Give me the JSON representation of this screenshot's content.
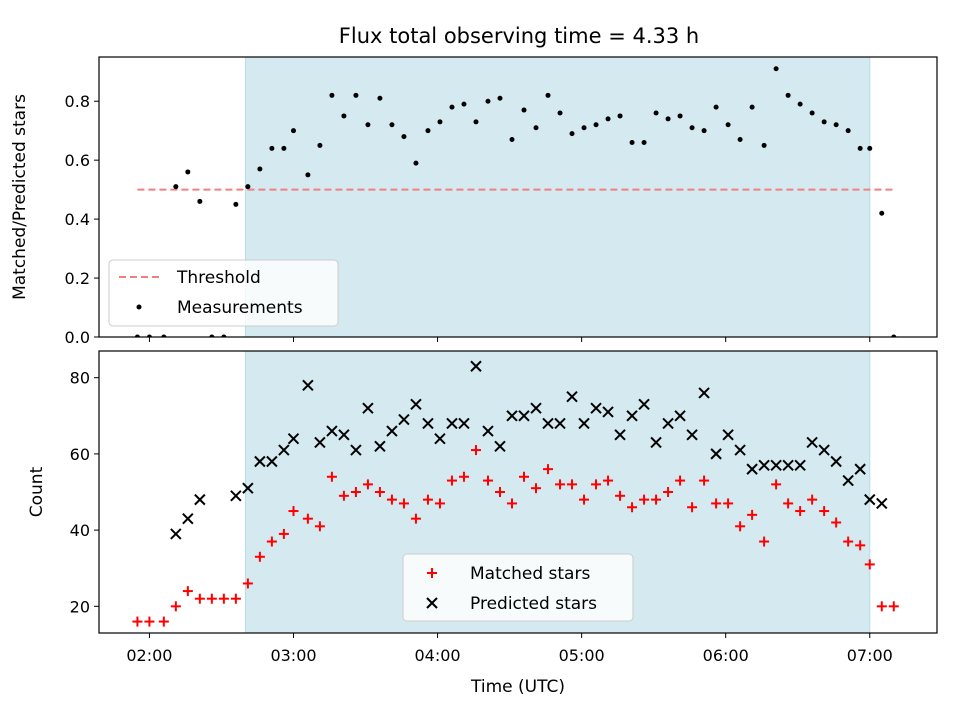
{
  "title": "Flux total observing time = 4.33 h",
  "colors": {
    "shade": "#d4eaf0",
    "shade_edge": "#b8dbe6",
    "threshold": "#f08080",
    "measurement": "#000000",
    "matched": "#ff0000",
    "predicted": "#000000"
  },
  "chart_data": [
    {
      "type": "scatter",
      "panel": "top",
      "ylabel": "Matched/Predicted stars",
      "xlabel": "",
      "xlim": [
        "01:39",
        "07:28"
      ],
      "ylim": [
        0,
        0.95
      ],
      "y_ticks": [
        "0.0",
        "0.2",
        "0.4",
        "0.6",
        "0.8"
      ],
      "shaded_region": [
        "02:40",
        "07:00"
      ],
      "legend": {
        "placement": "lower-left",
        "entries": [
          "Threshold",
          "Measurements"
        ]
      },
      "threshold": {
        "name": "Threshold",
        "style": "dashed",
        "x": [
          "01:55",
          "07:10"
        ],
        "y": 0.5
      },
      "series": [
        {
          "name": "Measurements",
          "points": [
            [
              "01:55",
              0.0
            ],
            [
              "02:00",
              0.0
            ],
            [
              "02:06",
              0.0
            ],
            [
              "02:11",
              0.51
            ],
            [
              "02:16",
              0.56
            ],
            [
              "02:21",
              0.46
            ],
            [
              "02:26",
              0.0
            ],
            [
              "02:31",
              0.0
            ],
            [
              "02:36",
              0.45
            ],
            [
              "02:41",
              0.51
            ],
            [
              "02:46",
              0.57
            ],
            [
              "02:51",
              0.64
            ],
            [
              "02:56",
              0.64
            ],
            [
              "03:00",
              0.7
            ],
            [
              "03:06",
              0.55
            ],
            [
              "03:11",
              0.65
            ],
            [
              "03:16",
              0.82
            ],
            [
              "03:21",
              0.75
            ],
            [
              "03:26",
              0.82
            ],
            [
              "03:31",
              0.72
            ],
            [
              "03:36",
              0.81
            ],
            [
              "03:41",
              0.72
            ],
            [
              "03:46",
              0.68
            ],
            [
              "03:51",
              0.59
            ],
            [
              "03:56",
              0.7
            ],
            [
              "04:01",
              0.73
            ],
            [
              "04:06",
              0.78
            ],
            [
              "04:11",
              0.79
            ],
            [
              "04:16",
              0.73
            ],
            [
              "04:21",
              0.8
            ],
            [
              "04:26",
              0.81
            ],
            [
              "04:31",
              0.67
            ],
            [
              "04:36",
              0.77
            ],
            [
              "04:41",
              0.71
            ],
            [
              "04:46",
              0.82
            ],
            [
              "04:51",
              0.76
            ],
            [
              "04:56",
              0.69
            ],
            [
              "05:01",
              0.71
            ],
            [
              "05:06",
              0.72
            ],
            [
              "05:11",
              0.74
            ],
            [
              "05:16",
              0.75
            ],
            [
              "05:21",
              0.66
            ],
            [
              "05:26",
              0.66
            ],
            [
              "05:31",
              0.76
            ],
            [
              "05:36",
              0.74
            ],
            [
              "05:41",
              0.75
            ],
            [
              "05:46",
              0.71
            ],
            [
              "05:51",
              0.7
            ],
            [
              "05:56",
              0.78
            ],
            [
              "06:01",
              0.72
            ],
            [
              "06:06",
              0.67
            ],
            [
              "06:11",
              0.78
            ],
            [
              "06:16",
              0.65
            ],
            [
              "06:21",
              0.91
            ],
            [
              "06:26",
              0.82
            ],
            [
              "06:31",
              0.79
            ],
            [
              "06:36",
              0.76
            ],
            [
              "06:41",
              0.73
            ],
            [
              "06:46",
              0.72
            ],
            [
              "06:51",
              0.7
            ],
            [
              "06:56",
              0.64
            ],
            [
              "07:00",
              0.64
            ],
            [
              "07:05",
              0.42
            ],
            [
              "07:10",
              0.0
            ]
          ]
        }
      ]
    },
    {
      "type": "scatter",
      "panel": "bottom",
      "ylabel": "Count",
      "xlabel": "Time (UTC)",
      "xlim": [
        "01:39",
        "07:28"
      ],
      "ylim": [
        13,
        87
      ],
      "y_ticks": [
        "20",
        "40",
        "60",
        "80"
      ],
      "x_ticks": [
        "02:00",
        "03:00",
        "04:00",
        "05:00",
        "06:00",
        "07:00"
      ],
      "shaded_region": [
        "02:40",
        "07:00"
      ],
      "legend": {
        "placement": "lower-center",
        "entries": [
          "Matched stars",
          "Predicted stars"
        ]
      },
      "series": [
        {
          "name": "Matched stars",
          "marker": "plus",
          "points": [
            [
              "01:55",
              16
            ],
            [
              "02:00",
              16
            ],
            [
              "02:06",
              16
            ],
            [
              "02:11",
              20
            ],
            [
              "02:16",
              24
            ],
            [
              "02:21",
              22
            ],
            [
              "02:26",
              22
            ],
            [
              "02:31",
              22
            ],
            [
              "02:36",
              22
            ],
            [
              "02:41",
              26
            ],
            [
              "02:46",
              33
            ],
            [
              "02:51",
              37
            ],
            [
              "02:56",
              39
            ],
            [
              "03:00",
              45
            ],
            [
              "03:06",
              43
            ],
            [
              "03:11",
              41
            ],
            [
              "03:16",
              54
            ],
            [
              "03:21",
              49
            ],
            [
              "03:26",
              50
            ],
            [
              "03:31",
              52
            ],
            [
              "03:36",
              50
            ],
            [
              "03:41",
              48
            ],
            [
              "03:46",
              47
            ],
            [
              "03:51",
              43
            ],
            [
              "03:56",
              48
            ],
            [
              "04:01",
              47
            ],
            [
              "04:06",
              53
            ],
            [
              "04:11",
              54
            ],
            [
              "04:16",
              61
            ],
            [
              "04:21",
              53
            ],
            [
              "04:26",
              50
            ],
            [
              "04:31",
              47
            ],
            [
              "04:36",
              54
            ],
            [
              "04:41",
              51
            ],
            [
              "04:46",
              56
            ],
            [
              "04:51",
              52
            ],
            [
              "04:56",
              52
            ],
            [
              "05:01",
              48
            ],
            [
              "05:06",
              52
            ],
            [
              "05:11",
              53
            ],
            [
              "05:16",
              49
            ],
            [
              "05:21",
              46
            ],
            [
              "05:26",
              48
            ],
            [
              "05:31",
              48
            ],
            [
              "05:36",
              50
            ],
            [
              "05:41",
              53
            ],
            [
              "05:46",
              46
            ],
            [
              "05:51",
              53
            ],
            [
              "05:56",
              47
            ],
            [
              "06:01",
              47
            ],
            [
              "06:06",
              41
            ],
            [
              "06:11",
              44
            ],
            [
              "06:16",
              37
            ],
            [
              "06:21",
              52
            ],
            [
              "06:26",
              47
            ],
            [
              "06:31",
              45
            ],
            [
              "06:36",
              48
            ],
            [
              "06:41",
              45
            ],
            [
              "06:46",
              42
            ],
            [
              "06:51",
              37
            ],
            [
              "06:56",
              36
            ],
            [
              "07:00",
              31
            ],
            [
              "07:05",
              20
            ],
            [
              "07:10",
              20
            ]
          ]
        },
        {
          "name": "Predicted stars",
          "marker": "x",
          "points": [
            [
              "02:11",
              39
            ],
            [
              "02:16",
              43
            ],
            [
              "02:21",
              48
            ],
            [
              "02:36",
              49
            ],
            [
              "02:41",
              51
            ],
            [
              "02:46",
              58
            ],
            [
              "02:51",
              58
            ],
            [
              "02:56",
              61
            ],
            [
              "03:00",
              64
            ],
            [
              "03:06",
              78
            ],
            [
              "03:11",
              63
            ],
            [
              "03:16",
              66
            ],
            [
              "03:21",
              65
            ],
            [
              "03:26",
              61
            ],
            [
              "03:31",
              72
            ],
            [
              "03:36",
              62
            ],
            [
              "03:41",
              66
            ],
            [
              "03:46",
              69
            ],
            [
              "03:51",
              73
            ],
            [
              "03:56",
              68
            ],
            [
              "04:01",
              64
            ],
            [
              "04:06",
              68
            ],
            [
              "04:11",
              68
            ],
            [
              "04:16",
              83
            ],
            [
              "04:21",
              66
            ],
            [
              "04:26",
              62
            ],
            [
              "04:31",
              70
            ],
            [
              "04:36",
              70
            ],
            [
              "04:41",
              72
            ],
            [
              "04:46",
              68
            ],
            [
              "04:51",
              68
            ],
            [
              "04:56",
              75
            ],
            [
              "05:01",
              68
            ],
            [
              "05:06",
              72
            ],
            [
              "05:11",
              71
            ],
            [
              "05:16",
              65
            ],
            [
              "05:21",
              70
            ],
            [
              "05:26",
              73
            ],
            [
              "05:31",
              63
            ],
            [
              "05:36",
              68
            ],
            [
              "05:41",
              70
            ],
            [
              "05:46",
              65
            ],
            [
              "05:51",
              76
            ],
            [
              "05:56",
              60
            ],
            [
              "06:01",
              65
            ],
            [
              "06:06",
              61
            ],
            [
              "06:11",
              56
            ],
            [
              "06:16",
              57
            ],
            [
              "06:21",
              57
            ],
            [
              "06:26",
              57
            ],
            [
              "06:31",
              57
            ],
            [
              "06:36",
              63
            ],
            [
              "06:41",
              61
            ],
            [
              "06:46",
              58
            ],
            [
              "06:51",
              53
            ],
            [
              "06:56",
              56
            ],
            [
              "07:00",
              48
            ],
            [
              "07:05",
              47
            ]
          ]
        }
      ]
    }
  ]
}
